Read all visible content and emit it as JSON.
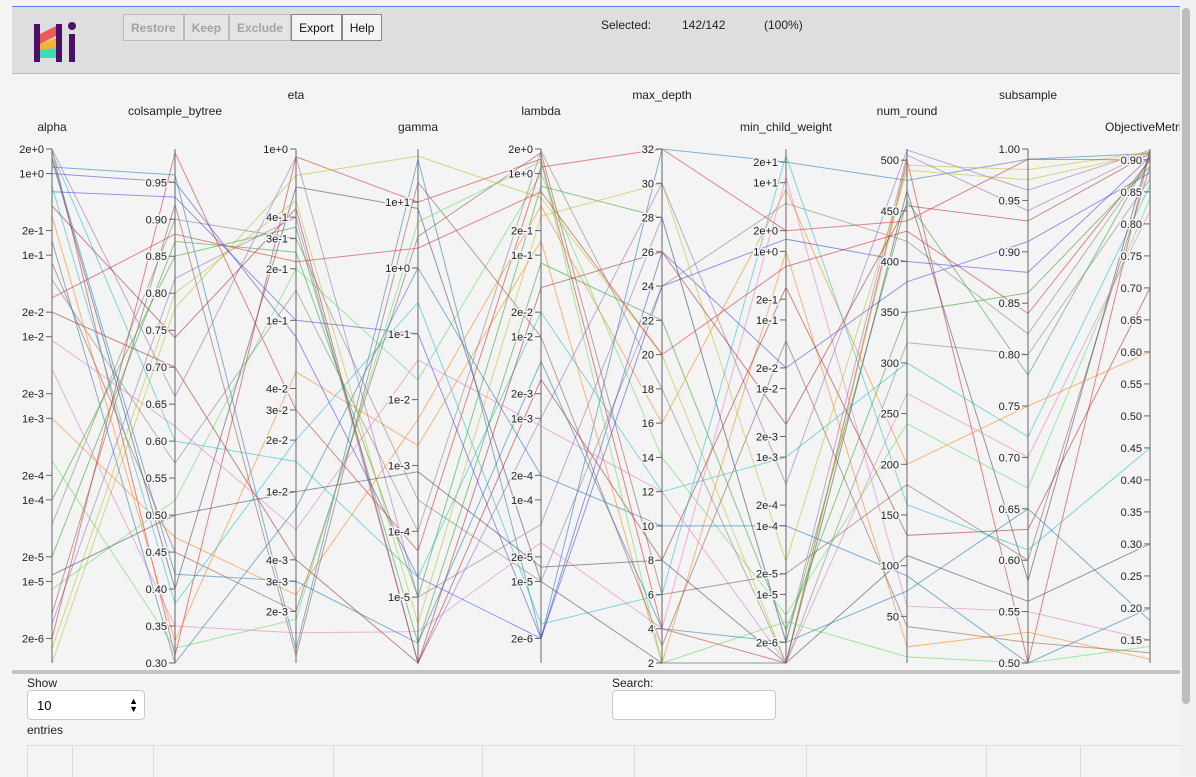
{
  "toolbar": {
    "restore": "Restore",
    "keep": "Keep",
    "exclude": "Exclude",
    "export": "Export",
    "help": "Help"
  },
  "selection": {
    "label": "Selected:",
    "count": "142/142",
    "percent": "(100%)"
  },
  "controls": {
    "show_label": "Show",
    "show_value": "10",
    "entries_label": "entries",
    "search_label": "Search:",
    "search_value": ""
  },
  "colors": {
    "accent": "#5b7ee5",
    "header_bg": "#dedede",
    "logo_purple": "#4b0f66",
    "logo_red": "#ef5a55",
    "logo_yellow": "#f2b233",
    "logo_teal": "#3fd9b4"
  },
  "chart_data": {
    "type": "parallel-coordinates",
    "axes": [
      {
        "name": "alpha",
        "scale": "log",
        "domain": [
          1e-06,
          2
        ],
        "ticks": [
          "2e+0",
          "1e+0",
          "2e-1",
          "1e-1",
          "2e-2",
          "1e-2",
          "2e-3",
          "1e-3",
          "2e-4",
          "1e-4",
          "2e-5",
          "1e-5",
          "2e-6"
        ]
      },
      {
        "name": "colsample_bytree",
        "scale": "linear",
        "domain": [
          0.3,
          0.995
        ],
        "ticks": [
          "0.95",
          "0.90",
          "0.85",
          "0.80",
          "0.75",
          "0.70",
          "0.65",
          "0.60",
          "0.55",
          "0.50",
          "0.45",
          "0.40",
          "0.35",
          "0.30"
        ]
      },
      {
        "name": "eta",
        "scale": "log",
        "domain": [
          0.001,
          1
        ],
        "ticks": [
          "1e+0",
          "4e-1",
          "3e-1",
          "2e-1",
          "1e-1",
          "4e-2",
          "3e-2",
          "2e-2",
          "1e-2",
          "4e-3",
          "3e-3",
          "2e-3"
        ]
      },
      {
        "name": "gamma",
        "scale": "log",
        "domain": [
          1e-06,
          64
        ],
        "ticks": [
          "1e+1",
          "1e+0",
          "1e-1",
          "1e-2",
          "1e-3",
          "1e-4",
          "1e-5"
        ]
      },
      {
        "name": "lambda",
        "scale": "log",
        "domain": [
          1e-06,
          2
        ],
        "ticks": [
          "2e+0",
          "1e+0",
          "2e-1",
          "1e-1",
          "2e-2",
          "1e-2",
          "2e-3",
          "1e-3",
          "2e-4",
          "1e-4",
          "2e-5",
          "1e-5",
          "2e-6"
        ]
      },
      {
        "name": "max_depth",
        "scale": "linear",
        "domain": [
          2,
          32
        ],
        "ticks": [
          "32",
          "30",
          "28",
          "26",
          "24",
          "22",
          "20",
          "18",
          "16",
          "14",
          "12",
          "10",
          "8",
          "6",
          "4",
          "2"
        ]
      },
      {
        "name": "min_child_weight",
        "scale": "log",
        "domain": [
          1e-06,
          31
        ],
        "ticks": [
          "2e+1",
          "1e+1",
          "2e+0",
          "1e+0",
          "2e-1",
          "1e-1",
          "2e-2",
          "1e-2",
          "2e-3",
          "1e-3",
          "2e-4",
          "1e-4",
          "2e-5",
          "1e-5",
          "2e-6"
        ]
      },
      {
        "name": "num_round",
        "scale": "linear",
        "domain": [
          4,
          511
        ],
        "ticks": [
          "500",
          "450",
          "400",
          "350",
          "300",
          "250",
          "200",
          "150",
          "100",
          "50"
        ]
      },
      {
        "name": "subsample",
        "scale": "linear",
        "domain": [
          0.5,
          1.0
        ],
        "ticks": [
          "1.00",
          "0.95",
          "0.90",
          "0.85",
          "0.80",
          "0.75",
          "0.70",
          "0.65",
          "0.60",
          "0.55",
          "0.50"
        ]
      },
      {
        "name": "ObjectiveMetric -",
        "scale": "linear",
        "domain": [
          0.114,
          0.917
        ],
        "ticks": [
          "0.90",
          "0.85",
          "0.80",
          "0.75",
          "0.70",
          "0.65",
          "0.60",
          "0.55",
          "0.50",
          "0.45",
          "0.40",
          "0.35",
          "0.30",
          "0.25",
          "0.20",
          "0.15"
        ]
      }
    ],
    "rows": [
      [
        2,
        0.31,
        0.9,
        10,
        1.5,
        4,
        1e-06,
        500,
        0.5,
        0.914
      ],
      [
        1.2,
        0.96,
        0.0012,
        45,
        2e-06,
        32,
        20,
        480,
        0.99,
        0.91
      ],
      [
        2e-05,
        0.87,
        0.25,
        1e-05,
        0.7,
        28,
        2e-06,
        460,
        0.78,
        0.905
      ],
      [
        0.3,
        0.33,
        0.05,
        0.002,
        0.15,
        2,
        1,
        20,
        0.53,
        0.12
      ],
      [
        3e-06,
        0.82,
        0.4,
        1e-06,
        0.001,
        30,
        0.0004,
        510,
        0.96,
        0.915
      ],
      [
        0.08,
        0.45,
        0.002,
        3,
        1.8,
        6,
        2e-05,
        180,
        0.6,
        0.89
      ],
      [
        5e-05,
        0.9,
        0.3,
        0.0003,
        1e-05,
        24,
        5,
        420,
        0.82,
        0.9
      ],
      [
        1.8,
        0.6,
        0.015,
        2e-05,
        0.02,
        12,
        0.001,
        300,
        0.72,
        0.86
      ],
      [
        1e-06,
        0.78,
        0.7,
        50,
        0.5,
        20,
        1e-06,
        495,
        0.98,
        0.912
      ],
      [
        0.004,
        0.35,
        0.0015,
        3e-06,
        3e-05,
        4,
        12,
        60,
        0.55,
        0.15
      ],
      [
        0.6,
        0.93,
        0.1,
        0.1,
        2e-06,
        26,
        0.02,
        380,
        0.91,
        0.88
      ],
      [
        8e-06,
        0.52,
        0.2,
        0.02,
        1,
        14,
        5e-06,
        240,
        0.67,
        0.84
      ],
      [
        0.02,
        0.7,
        0.004,
        1e-06,
        0.003,
        8,
        0.3,
        130,
        0.63,
        0.7
      ],
      [
        1.5,
        0.4,
        0.6,
        8,
        1e-05,
        2,
        1e-06,
        470,
        0.58,
        0.915
      ],
      [
        2e-06,
        0.99,
        0.03,
        5e-05,
        1.2,
        32,
        2,
        440,
        0.99,
        0.9
      ],
      [
        0.15,
        0.3,
        0.008,
        1,
        0.0002,
        10,
        0.0001,
        90,
        0.5,
        0.2
      ],
      [
        0.0001,
        0.85,
        0.35,
        2e-06,
        0.08,
        22,
        3e-06,
        350,
        0.86,
        0.89
      ],
      [
        0.001,
        0.47,
        0.0025,
        0.005,
        0.4,
        16,
        8,
        200,
        0.75,
        0.6
      ],
      [
        2,
        0.66,
        0.9,
        1e-05,
        5e-05,
        28,
        2e-06,
        505,
        0.94,
        0.913
      ],
      [
        4e-06,
        0.92,
        0.0011,
        20,
        0.01,
        3,
        0.05,
        40,
        0.52,
        0.13
      ],
      [
        0.05,
        0.57,
        0.15,
        0.0001,
        1.9,
        18,
        1e-06,
        320,
        0.8,
        0.87
      ],
      [
        0.7,
        0.38,
        0.02,
        0.3,
        3e-06,
        6,
        25,
        160,
        0.61,
        0.45
      ],
      [
        1.5e-06,
        0.8,
        0.5,
        4e-06,
        0.3,
        30,
        3e-05,
        490,
        0.97,
        0.911
      ],
      [
        0.009,
        0.62,
        0.006,
        0.04,
        0.0008,
        12,
        1e-06,
        270,
        0.7,
        0.82
      ],
      [
        1,
        0.95,
        0.08,
        2e-05,
        2e-06,
        24,
        1.5,
        400,
        0.88,
        0.905
      ],
      [
        0.0003,
        0.32,
        0.0018,
        5,
        1.4,
        2,
        4e-06,
        10,
        0.5,
        0.14
      ],
      [
        0.4,
        0.74,
        0.45,
        1e-06,
        0.04,
        26,
        0.003,
        455,
        0.93,
        0.91
      ],
      [
        1.2e-05,
        0.5,
        0.01,
        0.0008,
        1.5e-05,
        8,
        1e-06,
        110,
        0.56,
        0.3
      ],
      [
        0.03,
        0.88,
        0.22,
        2,
        0.6,
        20,
        0.6,
        430,
        0.84,
        0.9
      ],
      [
        1.6,
        0.42,
        0.003,
        2e-06,
        0.005,
        4,
        2e-06,
        75,
        0.65,
        0.18
      ]
    ]
  }
}
